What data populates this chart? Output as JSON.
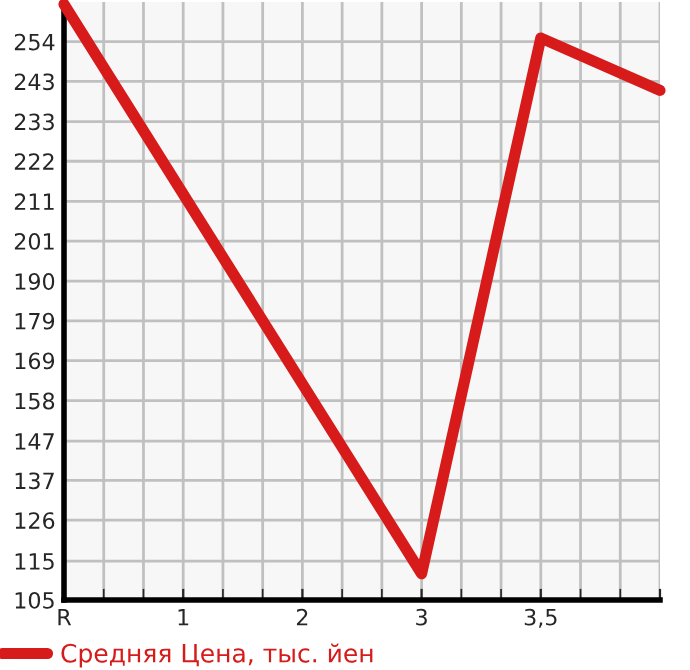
{
  "chart_data": {
    "type": "line",
    "categories": [
      "R",
      "1",
      "2",
      "3",
      "3,5",
      null
    ],
    "series": [
      {
        "name": "Средняя Цена, тыс. йен",
        "color": "#d71a1a",
        "values": [
          264,
          null,
          null,
          112,
          255,
          241
        ]
      }
    ],
    "ylim": [
      105,
      264.6
    ],
    "yticks": [
      105,
      {
        "value": 115.4,
        "label": "115"
      },
      {
        "value": 126.3,
        "label": "126"
      },
      {
        "value": 136.9,
        "label": "137"
      },
      {
        "value": 147.4,
        "label": "147"
      },
      {
        "value": 158.2,
        "label": "158"
      },
      {
        "value": 168.9,
        "label": "169"
      },
      {
        "value": 179.5,
        "label": "179"
      },
      {
        "value": 190.1,
        "label": "190"
      },
      {
        "value": 200.8,
        "label": "201"
      },
      {
        "value": 211.4,
        "label": "211"
      },
      {
        "value": 222.1,
        "label": "222"
      },
      {
        "value": 232.7,
        "label": "233"
      },
      {
        "value": 243.4,
        "label": "243"
      },
      254
    ],
    "grid": true,
    "legend": "bottom",
    "marker": "none",
    "line_style": "solid"
  }
}
